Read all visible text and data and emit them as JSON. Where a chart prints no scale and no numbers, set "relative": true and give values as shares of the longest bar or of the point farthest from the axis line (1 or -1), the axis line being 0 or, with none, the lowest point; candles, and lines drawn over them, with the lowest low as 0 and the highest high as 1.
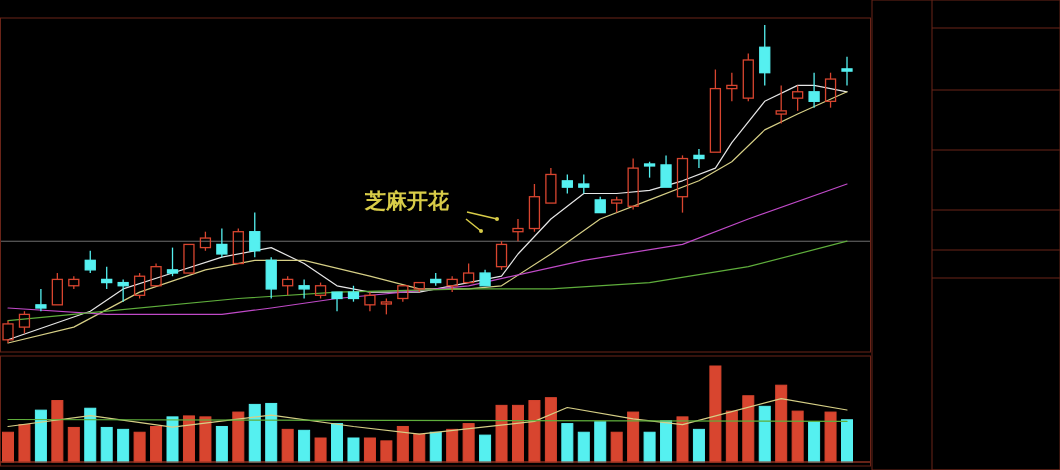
{
  "chart_data": [
    {
      "type": "candlestick",
      "relative": true,
      "categories": [
        null,
        null,
        null,
        null,
        null,
        null,
        null,
        null,
        null,
        null,
        null,
        null,
        null,
        null,
        null,
        null,
        null,
        null,
        null,
        null,
        null,
        null,
        null,
        null,
        null,
        null,
        null,
        null,
        null,
        null,
        null,
        null,
        null,
        null,
        null,
        null,
        null,
        null,
        null,
        null,
        null,
        null,
        null,
        null,
        null,
        null,
        null,
        null,
        null,
        null,
        null,
        null
      ],
      "ohlc": [
        [
          0.01,
          0.07,
          0,
          0.06
        ],
        [
          0.05,
          0.1,
          0.03,
          0.09
        ],
        [
          0.12,
          0.17,
          0.1,
          0.11
        ],
        [
          0.12,
          0.22,
          0.12,
          0.2
        ],
        [
          0.18,
          0.21,
          0.17,
          0.2
        ],
        [
          0.26,
          0.29,
          0.22,
          0.23
        ],
        [
          0.2,
          0.24,
          0.17,
          0.19
        ],
        [
          0.19,
          0.2,
          0.13,
          0.18
        ],
        [
          0.15,
          0.22,
          0.14,
          0.21
        ],
        [
          0.18,
          0.25,
          0.18,
          0.24
        ],
        [
          0.23,
          0.3,
          0.21,
          0.22
        ],
        [
          0.22,
          0.31,
          0.22,
          0.31
        ],
        [
          0.3,
          0.35,
          0.29,
          0.33
        ],
        [
          0.31,
          0.36,
          0.27,
          0.28
        ],
        [
          0.25,
          0.36,
          0.25,
          0.35
        ],
        [
          0.35,
          0.41,
          0.27,
          0.29
        ],
        [
          0.26,
          0.27,
          0.14,
          0.17
        ],
        [
          0.18,
          0.21,
          0.15,
          0.2
        ],
        [
          0.18,
          0.2,
          0.14,
          0.17
        ],
        [
          0.15,
          0.19,
          0.14,
          0.18
        ],
        [
          0.16,
          0.16,
          0.1,
          0.14
        ],
        [
          0.16,
          0.18,
          0.13,
          0.14
        ],
        [
          0.12,
          0.16,
          0.1,
          0.15
        ],
        [
          0.126,
          0.14,
          0.09,
          0.129
        ],
        [
          0.14,
          0.18,
          0.13,
          0.18
        ],
        [
          0.17,
          0.19,
          0.16,
          0.19
        ],
        [
          0.2,
          0.22,
          0.18,
          0.19
        ],
        [
          0.18,
          0.21,
          0.16,
          0.2
        ],
        [
          0.19,
          0.25,
          0.19,
          0.22
        ],
        [
          0.22,
          0.23,
          0.18,
          0.18
        ],
        [
          0.24,
          0.32,
          0.23,
          0.31
        ],
        [
          0.35,
          0.39,
          0.32,
          0.36
        ],
        [
          0.36,
          0.5,
          0.35,
          0.46
        ],
        [
          0.44,
          0.55,
          0.44,
          0.53
        ],
        [
          0.51,
          0.53,
          0.47,
          0.49
        ],
        [
          0.5,
          0.53,
          0.47,
          0.49
        ],
        [
          0.45,
          0.46,
          0.41,
          0.41
        ],
        [
          0.44,
          0.46,
          0.41,
          0.45
        ],
        [
          0.43,
          0.58,
          0.42,
          0.55
        ],
        [
          0.563,
          0.57,
          0.52,
          0.557
        ],
        [
          0.56,
          0.59,
          0.49,
          0.49
        ],
        [
          0.46,
          0.59,
          0.41,
          0.58
        ],
        [
          0.59,
          0.61,
          0.55,
          0.58
        ],
        [
          0.6,
          0.86,
          0.6,
          0.8
        ],
        [
          0.8,
          0.85,
          0.76,
          0.81
        ],
        [
          0.77,
          0.91,
          0.76,
          0.89
        ],
        [
          0.93,
          1,
          0.81,
          0.85
        ],
        [
          0.72,
          0.81,
          0.69,
          0.73
        ],
        [
          0.77,
          0.81,
          0.73,
          0.79
        ],
        [
          0.79,
          0.85,
          0.74,
          0.76
        ],
        [
          0.76,
          0.85,
          0.74,
          0.83
        ],
        [
          0.862,
          0.9,
          0.81,
          0.855
        ]
      ],
      "colors": [
        "#d8452f",
        "#d8452f",
        "#55f0f0",
        "#d8452f",
        "#d8452f",
        "#55f0f0",
        "#55f0f0",
        "#55f0f0",
        "#d8452f",
        "#d8452f",
        "#55f0f0",
        "#d8452f",
        "#d8452f",
        "#55f0f0",
        "#d8452f",
        "#55f0f0",
        "#55f0f0",
        "#d8452f",
        "#55f0f0",
        "#d8452f",
        "#55f0f0",
        "#55f0f0",
        "#d8452f",
        "#d8452f",
        "#d8452f",
        "#d8452f",
        "#55f0f0",
        "#d8452f",
        "#d8452f",
        "#55f0f0",
        "#d8452f",
        "#d8452f",
        "#d8452f",
        "#d8452f",
        "#55f0f0",
        "#55f0f0",
        "#55f0f0",
        "#d8452f",
        "#d8452f",
        "#55f0f0",
        "#55f0f0",
        "#d8452f",
        "#55f0f0",
        "#d8452f",
        "#d8452f",
        "#d8452f",
        "#55f0f0",
        "#d8452f",
        "#d8452f",
        "#55f0f0",
        "#d8452f",
        "#55f0f0"
      ],
      "series": [
        {
          "type": "line",
          "color": "#e6e6e6",
          "values": [
            0.01,
            null,
            null,
            null,
            null,
            0.1,
            null,
            0.17,
            null,
            null,
            0.22,
            null,
            null,
            0.27,
            null,
            null,
            0.3,
            null,
            0.25,
            null,
            0.18,
            null,
            0.16,
            null,
            null,
            0.16,
            null,
            null,
            0.19,
            null,
            0.21,
            0.28,
            null,
            0.39,
            null,
            0.47,
            null,
            0.47,
            null,
            0.48,
            null,
            0.51,
            null,
            0.55,
            0.63,
            null,
            0.76,
            null,
            0.81,
            0.81,
            null,
            0.79
          ]
        },
        {
          "type": "line",
          "color": "#d6cf86",
          "values": [
            0,
            null,
            null,
            null,
            0.05,
            null,
            null,
            null,
            0.16,
            null,
            null,
            null,
            0.23,
            null,
            null,
            0.26,
            null,
            null,
            0.26,
            null,
            null,
            null,
            0.21,
            null,
            null,
            0.17,
            null,
            null,
            0.17,
            null,
            0.18,
            null,
            null,
            0.28,
            null,
            null,
            0.39,
            null,
            null,
            0.45,
            null,
            null,
            0.51,
            null,
            0.57,
            null,
            0.67,
            null,
            0.72,
            null,
            null,
            0.79
          ]
        },
        {
          "type": "line",
          "color": "#c04ac8",
          "values": [
            0.11,
            null,
            null,
            null,
            null,
            null,
            0.09,
            null,
            null,
            null,
            null,
            null,
            null,
            0.09,
            null,
            null,
            0.11,
            null,
            null,
            null,
            0.14,
            null,
            null,
            null,
            null,
            null,
            null,
            null,
            0.18,
            null,
            null,
            null,
            null,
            null,
            null,
            0.26,
            null,
            null,
            null,
            null,
            null,
            0.31,
            null,
            null,
            null,
            0.39,
            null,
            null,
            null,
            null,
            null,
            0.5
          ]
        },
        {
          "type": "line",
          "color": "#5fae3c",
          "values": [
            0.07,
            null,
            null,
            null,
            null,
            null,
            0.1,
            null,
            null,
            null,
            null,
            null,
            null,
            null,
            0.14,
            null,
            null,
            null,
            null,
            null,
            0.16,
            null,
            null,
            null,
            null,
            null,
            null,
            null,
            0.17,
            null,
            null,
            null,
            null,
            0.17,
            null,
            null,
            null,
            null,
            null,
            0.19,
            null,
            null,
            null,
            null,
            null,
            0.24,
            null,
            null,
            null,
            null,
            null,
            0.32
          ]
        }
      ],
      "ref_lines": [
        {
          "axis": "y",
          "value": 0.32,
          "color": "#6e6e6e"
        }
      ],
      "annotations": [
        "芝麻开花"
      ]
    },
    {
      "type": "bar",
      "relative": true,
      "categories": [
        null,
        null,
        null,
        null,
        null,
        null,
        null,
        null,
        null,
        null,
        null,
        null,
        null,
        null,
        null,
        null,
        null,
        null,
        null,
        null,
        null,
        null,
        null,
        null,
        null,
        null,
        null,
        null,
        null,
        null,
        null,
        null,
        null,
        null,
        null,
        null,
        null,
        null,
        null,
        null,
        null,
        null,
        null,
        null,
        null,
        null,
        null,
        null,
        null,
        null,
        null,
        null
      ],
      "series": [
        {
          "type": "bar",
          "values": [
            0.31,
            0.39,
            0.54,
            0.64,
            0.36,
            0.56,
            0.36,
            0.34,
            0.31,
            0.37,
            0.47,
            0.48,
            0.47,
            0.37,
            0.52,
            0.6,
            0.61,
            0.34,
            0.33,
            0.25,
            0.4,
            0.25,
            0.25,
            0.22,
            0.37,
            0.29,
            0.31,
            0.34,
            0.4,
            0.28,
            0.59,
            0.59,
            0.64,
            0.67,
            0.4,
            0.31,
            0.42,
            0.31,
            0.52,
            0.31,
            0.43,
            0.47,
            0.34,
            1,
            0.53,
            0.69,
            0.58,
            0.8,
            0.53,
            0.42,
            0.52,
            0.44
          ],
          "colors": [
            "#d8452f",
            "#d8452f",
            "#55f0f0",
            "#d8452f",
            "#d8452f",
            "#55f0f0",
            "#55f0f0",
            "#55f0f0",
            "#d8452f",
            "#d8452f",
            "#55f0f0",
            "#d8452f",
            "#d8452f",
            "#55f0f0",
            "#d8452f",
            "#55f0f0",
            "#55f0f0",
            "#d8452f",
            "#55f0f0",
            "#d8452f",
            "#55f0f0",
            "#55f0f0",
            "#d8452f",
            "#d8452f",
            "#d8452f",
            "#d8452f",
            "#55f0f0",
            "#d8452f",
            "#d8452f",
            "#55f0f0",
            "#d8452f",
            "#d8452f",
            "#d8452f",
            "#d8452f",
            "#55f0f0",
            "#55f0f0",
            "#55f0f0",
            "#d8452f",
            "#d8452f",
            "#55f0f0",
            "#55f0f0",
            "#d8452f",
            "#55f0f0",
            "#d8452f",
            "#d8452f",
            "#d8452f",
            "#55f0f0",
            "#d8452f",
            "#d8452f",
            "#55f0f0",
            "#d8452f",
            "#55f0f0"
          ]
        }
      ]
    },
    {
      "type": "line",
      "relative": true,
      "categories": [
        null,
        null,
        null,
        null,
        null,
        null,
        null,
        null,
        null,
        null,
        null,
        null,
        null,
        null,
        null,
        null,
        null,
        null,
        null,
        null,
        null,
        null,
        null,
        null,
        null,
        null,
        null,
        null,
        null,
        null,
        null,
        null,
        null,
        null,
        null,
        null,
        null,
        null,
        null,
        null,
        null,
        null,
        null,
        null,
        null,
        null,
        null,
        null,
        null,
        null,
        null,
        null
      ],
      "series": [
        {
          "color": "#d6cf86",
          "values": [
            0.56,
            null,
            null,
            null,
            null,
            0.73,
            null,
            null,
            null,
            null,
            0.55,
            null,
            null,
            null,
            null,
            null,
            0.74,
            null,
            null,
            null,
            null,
            0.56,
            null,
            null,
            null,
            0.44,
            null,
            null,
            null,
            null,
            null,
            null,
            0.64,
            null,
            0.86,
            null,
            null,
            null,
            0.68,
            null,
            null,
            0.59,
            null,
            null,
            null,
            null,
            null,
            1,
            null,
            null,
            null,
            0.82
          ]
        },
        {
          "color": "#5fae3c",
          "values": [
            0.67,
            null,
            null,
            null,
            null,
            null,
            null,
            null,
            null,
            null,
            null,
            null,
            null,
            null,
            null,
            null,
            null,
            null,
            null,
            null,
            null,
            null,
            null,
            null,
            null,
            null,
            null,
            null,
            null,
            null,
            null,
            null,
            null,
            null,
            null,
            null,
            null,
            null,
            null,
            null,
            null,
            null,
            null,
            null,
            null,
            null,
            null,
            null,
            null,
            null,
            null,
            0.64
          ]
        }
      ]
    }
  ]
}
